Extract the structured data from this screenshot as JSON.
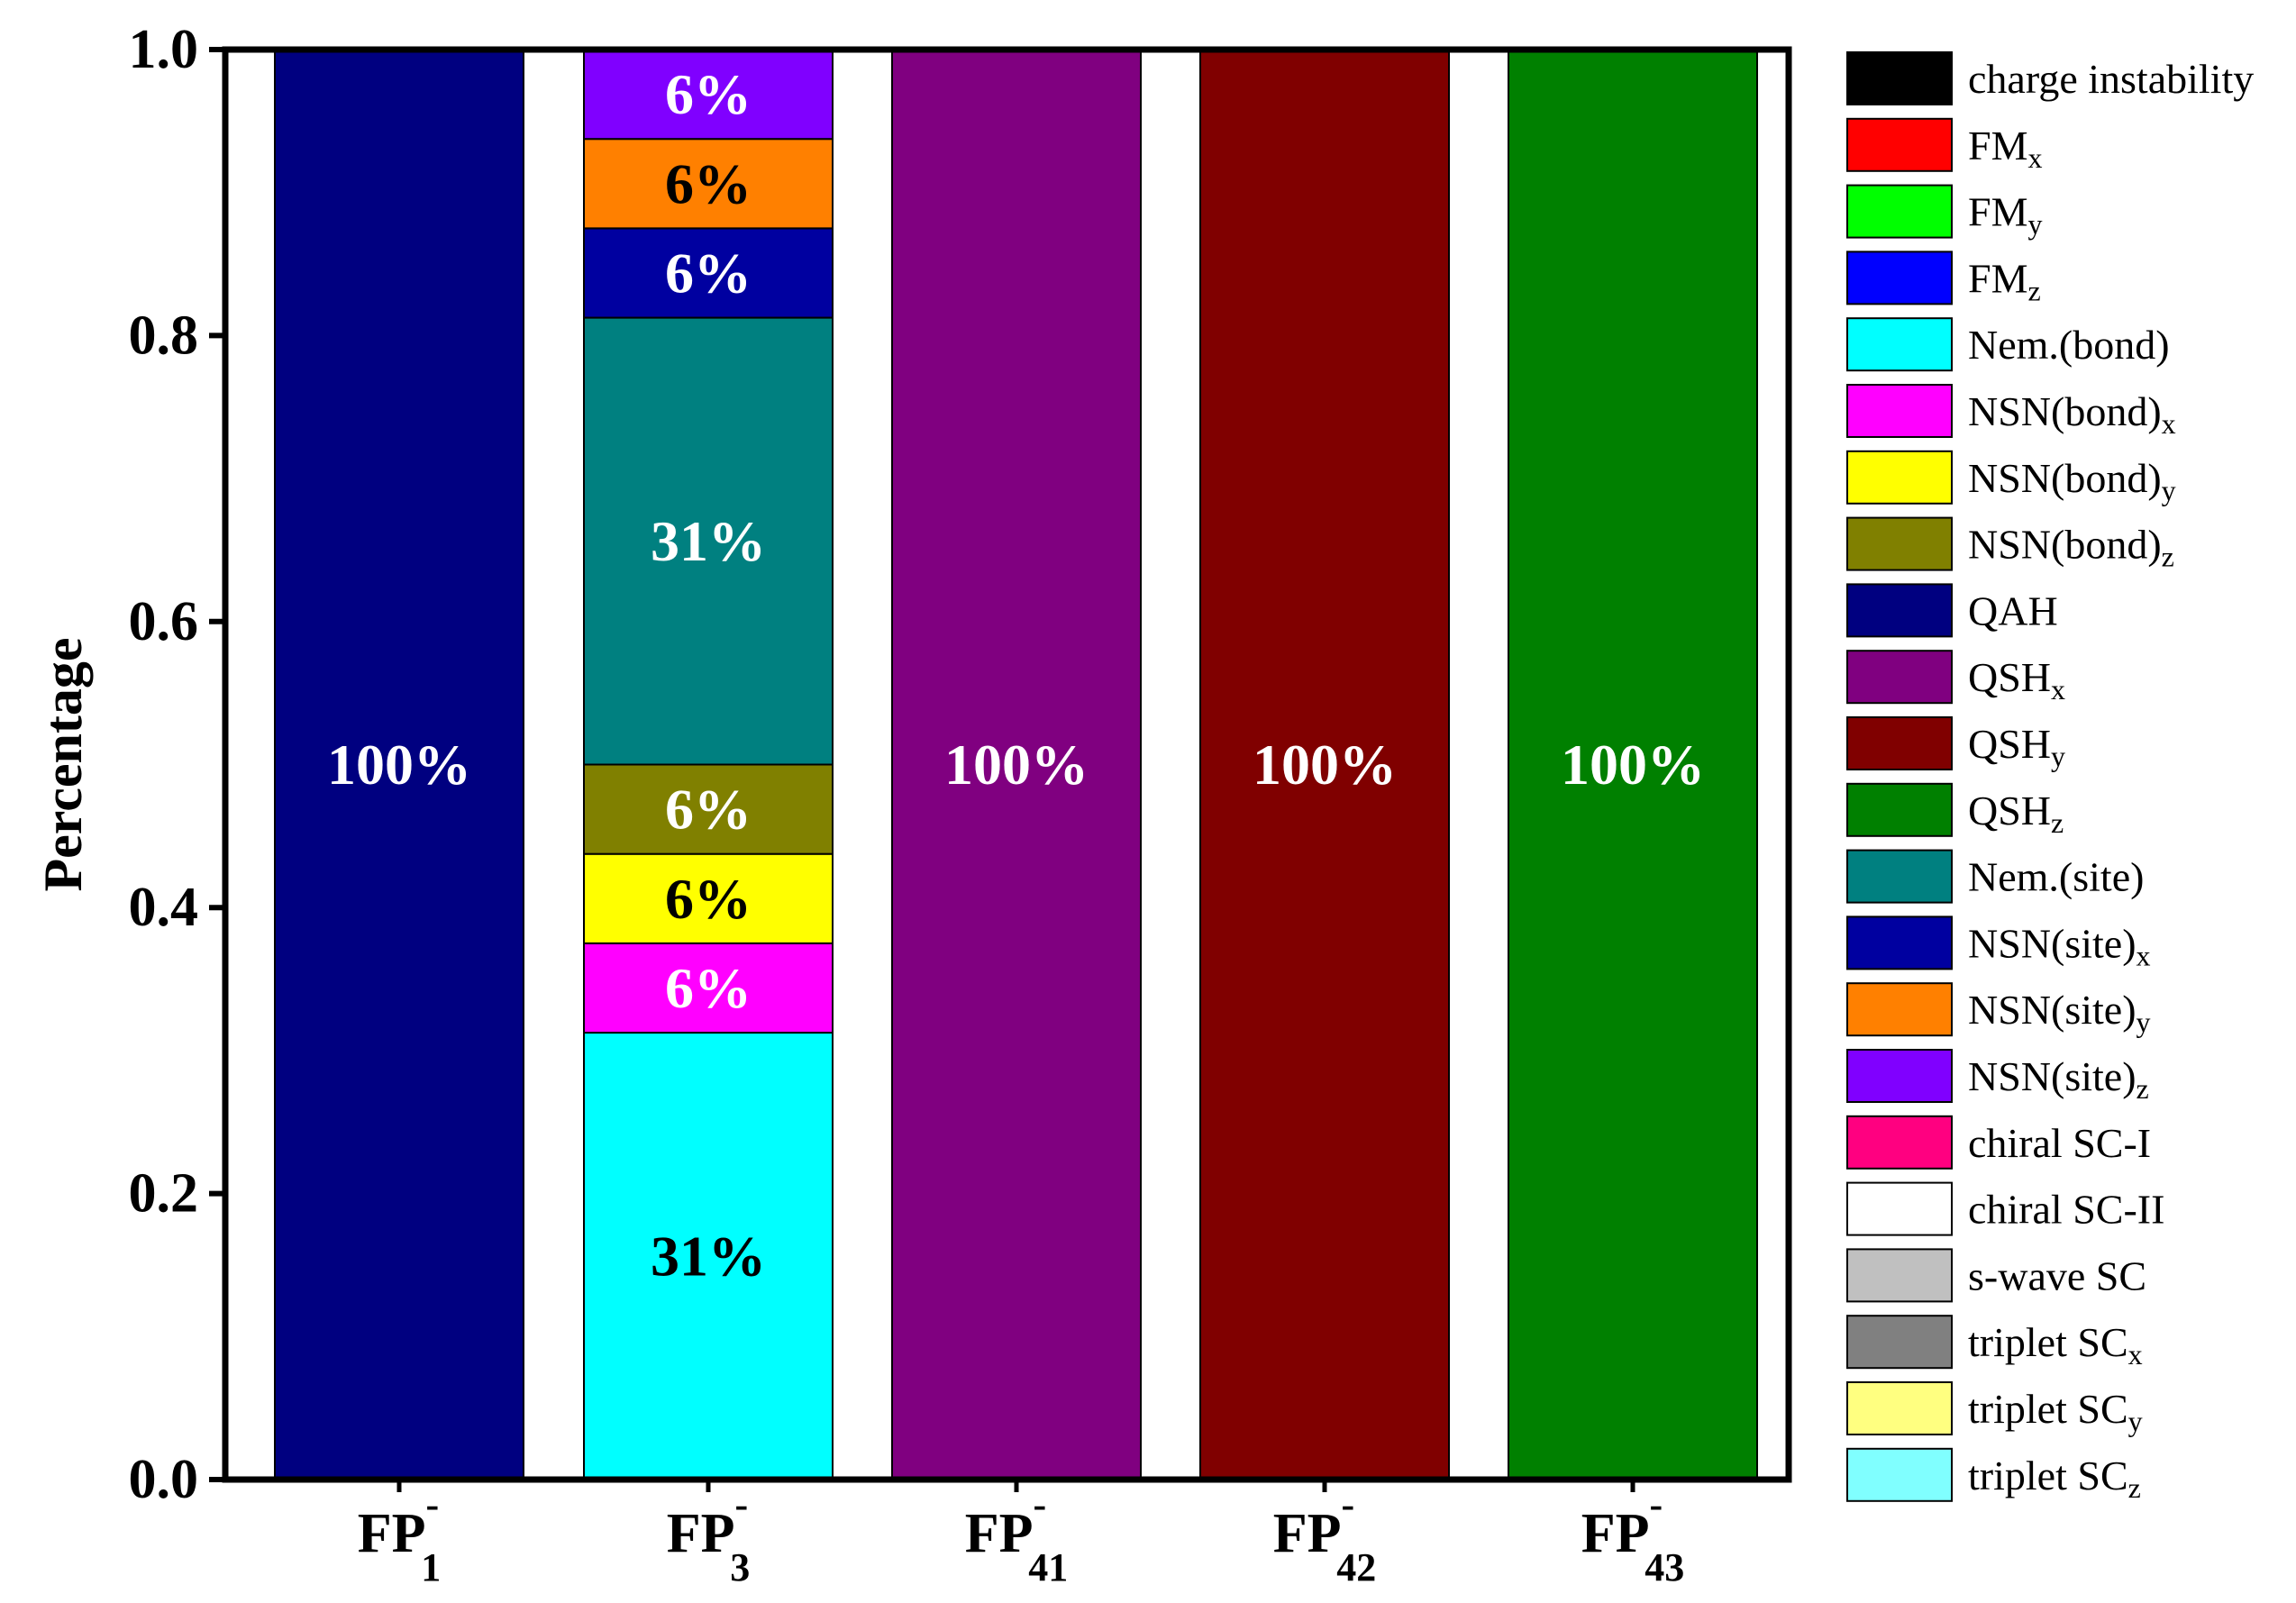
{
  "chart_data": {
    "type": "bar",
    "stacked": true,
    "ylabel": "Percentage",
    "ylim": [
      0,
      1.0
    ],
    "yticks": [
      "0.0",
      "0.2",
      "0.4",
      "0.6",
      "0.8",
      "1.0"
    ],
    "categories": [
      {
        "base": "FP",
        "sup": "-",
        "sub": "1"
      },
      {
        "base": "FP",
        "sup": "-",
        "sub": "3"
      },
      {
        "base": "FP",
        "sup": "-",
        "sub": "41"
      },
      {
        "base": "FP",
        "sup": "-",
        "sub": "42"
      },
      {
        "base": "FP",
        "sup": "-",
        "sub": "43"
      }
    ],
    "bars": [
      [
        {
          "phase": "QAH",
          "value": 1.0,
          "label": "100%",
          "label_color": "#ffffff"
        }
      ],
      [
        {
          "phase": "Nem.(bond)",
          "value": 0.3125,
          "label": "31%",
          "label_color": "#000000"
        },
        {
          "phase": "NSN(bond)x",
          "value": 0.0625,
          "label": "6%",
          "label_color": "#ffffff"
        },
        {
          "phase": "NSN(bond)y",
          "value": 0.0625,
          "label": "6%",
          "label_color": "#000000"
        },
        {
          "phase": "NSN(bond)z",
          "value": 0.0625,
          "label": "6%",
          "label_color": "#ffffff"
        },
        {
          "phase": "Nem.(site)",
          "value": 0.3125,
          "label": "31%",
          "label_color": "#ffffff"
        },
        {
          "phase": "NSN(site)x",
          "value": 0.0625,
          "label": "6%",
          "label_color": "#ffffff"
        },
        {
          "phase": "NSN(site)y",
          "value": 0.0625,
          "label": "6%",
          "label_color": "#000000"
        },
        {
          "phase": "NSN(site)z",
          "value": 0.0625,
          "label": "6%",
          "label_color": "#ffffff"
        }
      ],
      [
        {
          "phase": "QSHx",
          "value": 1.0,
          "label": "100%",
          "label_color": "#ffffff"
        }
      ],
      [
        {
          "phase": "QSHy",
          "value": 1.0,
          "label": "100%",
          "label_color": "#ffffff"
        }
      ],
      [
        {
          "phase": "QSHz",
          "value": 1.0,
          "label": "100%",
          "label_color": "#ffffff"
        }
      ]
    ],
    "legend_position": "right",
    "legend": [
      {
        "key": "charge instability",
        "text": "charge instability",
        "sub": "",
        "color": "#000000"
      },
      {
        "key": "FMx",
        "text": "FM",
        "sub": "x",
        "color": "#ff0000"
      },
      {
        "key": "FMy",
        "text": "FM",
        "sub": "y",
        "color": "#00ff00"
      },
      {
        "key": "FMz",
        "text": "FM",
        "sub": "z",
        "color": "#0000ff"
      },
      {
        "key": "Nem.(bond)",
        "text": "Nem.(bond)",
        "sub": "",
        "color": "#00ffff"
      },
      {
        "key": "NSN(bond)x",
        "text": "NSN(bond)",
        "sub": "x",
        "color": "#ff00ff"
      },
      {
        "key": "NSN(bond)y",
        "text": "NSN(bond)",
        "sub": "y",
        "color": "#ffff00"
      },
      {
        "key": "NSN(bond)z",
        "text": "NSN(bond)",
        "sub": "z",
        "color": "#808000"
      },
      {
        "key": "QAH",
        "text": "QAH",
        "sub": "",
        "color": "#000080"
      },
      {
        "key": "QSHx",
        "text": "QSH",
        "sub": "x",
        "color": "#800080"
      },
      {
        "key": "QSHy",
        "text": "QSH",
        "sub": "y",
        "color": "#800000"
      },
      {
        "key": "QSHz",
        "text": "QSH",
        "sub": "z",
        "color": "#008000"
      },
      {
        "key": "Nem.(site)",
        "text": "Nem.(site)",
        "sub": "",
        "color": "#008080"
      },
      {
        "key": "NSN(site)x",
        "text": "NSN(site)",
        "sub": "x",
        "color": "#0000a0"
      },
      {
        "key": "NSN(site)y",
        "text": "NSN(site)",
        "sub": "y",
        "color": "#ff8000"
      },
      {
        "key": "NSN(site)z",
        "text": "NSN(site)",
        "sub": "z",
        "color": "#8000ff"
      },
      {
        "key": "chiral SC-I",
        "text": "chiral SC-I",
        "sub": "",
        "color": "#ff0080"
      },
      {
        "key": "chiral SC-II",
        "text": "chiral SC-II",
        "sub": "",
        "color": "#ffffff"
      },
      {
        "key": "s-wave SC",
        "text": "s-wave SC",
        "sub": "",
        "color": "#c0c0c0"
      },
      {
        "key": "triplet SCx",
        "text": "triplet SC",
        "sub": "x",
        "color": "#808080"
      },
      {
        "key": "triplet SCy",
        "text": "triplet SC",
        "sub": "y",
        "color": "#ffff80"
      },
      {
        "key": "triplet SCz",
        "text": "triplet SC",
        "sub": "z",
        "color": "#80ffff"
      }
    ]
  }
}
